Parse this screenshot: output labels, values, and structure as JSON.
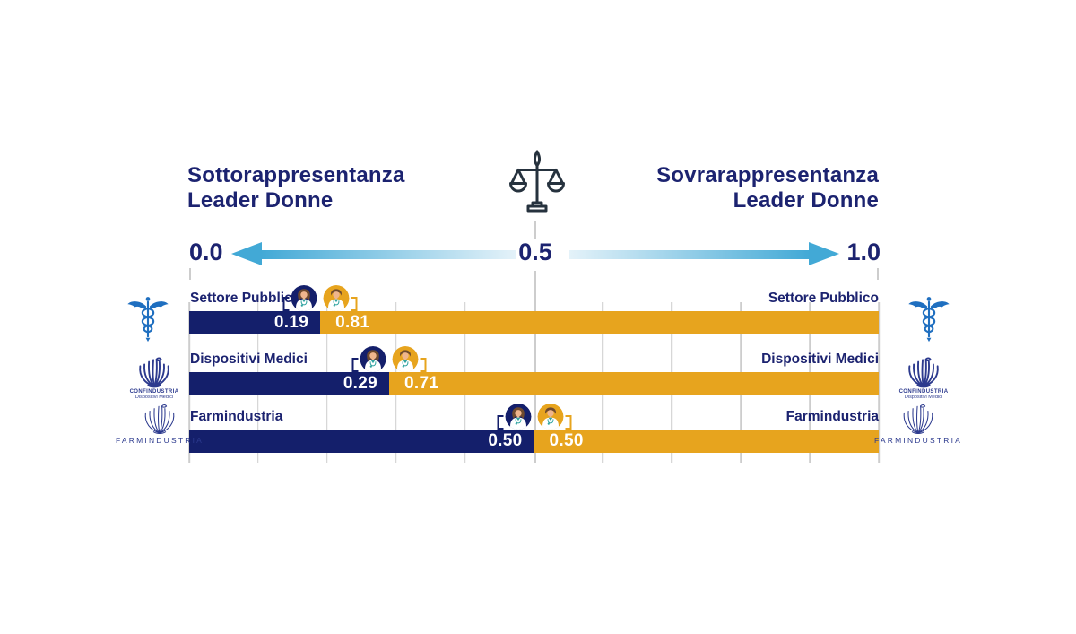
{
  "header": {
    "left_line1": "Sottorappresentanza",
    "left_line2": "Leader Donne",
    "right_line1": "Sovrarappresentanza",
    "right_line2": "Leader Donne"
  },
  "axis": {
    "min": "0.0",
    "mid": "0.5",
    "max": "1.0"
  },
  "rows": [
    {
      "label": "Settore Pubblico",
      "navy_value": "0.19",
      "gold_value": "0.81",
      "navy_pct": 19,
      "gold_pct": 81
    },
    {
      "label": "Dispositivi Medici",
      "navy_value": "0.29",
      "gold_value": "0.71",
      "navy_pct": 29,
      "gold_pct": 71
    },
    {
      "label": "Farmindustria",
      "navy_value": "0.50",
      "gold_value": "0.50",
      "navy_pct": 50,
      "gold_pct": 50
    }
  ],
  "logos": {
    "confindustria_line1": "CONFINDUSTRIA",
    "confindustria_line2": "Dispositivi Medici",
    "farmindustria": "FARMINDUSTRIA"
  },
  "icons": [
    "balance-scale-icon",
    "left-arrow",
    "right-arrow",
    "caduceus-icon",
    "confindustria-eagle-icon",
    "farmindustria-eagle-icon",
    "female-doctor-icon",
    "male-doctor-icon"
  ],
  "colors": {
    "navy": "#141f6b",
    "gold": "#e7a41e",
    "textnavy": "#1c2370",
    "arrowdark": "#42a9d6",
    "arrowlight": "#e4f2f9",
    "grid": "#cdcdcd",
    "medblue": "#1f6fc0",
    "logonavy": "#2c3a8e",
    "scaleink": "#26323e"
  },
  "chart_data": {
    "type": "bar",
    "subtype": "horizontal-stacked-diverging",
    "categories": [
      "Settore Pubblico",
      "Dispositivi Medici",
      "Farmindustria"
    ],
    "series": [
      {
        "name": "quota navy (icona dottoressa)",
        "color": "#141f6b",
        "values": [
          0.19,
          0.29,
          0.5
        ]
      },
      {
        "name": "quota oro (icona dottore)",
        "color": "#e7a41e",
        "values": [
          0.81,
          0.71,
          0.5
        ]
      }
    ],
    "xlim": [
      0.0,
      1.0
    ],
    "x_ticks": [
      0.0,
      0.5,
      1.0
    ],
    "gridlines_every": 0.1,
    "left_annotation": "Sottorappresentanza Leader Donne",
    "right_annotation": "Sovrarappresentanza Leader Donne",
    "data_labels": [
      [
        "0.19",
        "0.81"
      ],
      [
        "0.29",
        "0.71"
      ],
      [
        "0.50",
        "0.50"
      ]
    ],
    "legend": "none"
  }
}
